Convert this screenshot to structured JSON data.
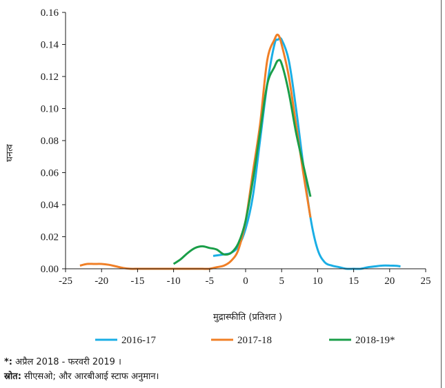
{
  "chart_data": {
    "type": "line",
    "title": "",
    "xlabel": "मुद्रास्फीति (प्रतिशत )",
    "ylabel": "घनत्व",
    "xlim": [
      -25,
      25
    ],
    "ylim": [
      0,
      0.16
    ],
    "xticks": [
      -25,
      -20,
      -15,
      -10,
      -5,
      0,
      5,
      10,
      15,
      20,
      25
    ],
    "yticks": [
      0.0,
      0.02,
      0.04,
      0.06,
      0.08,
      0.1,
      0.12,
      0.14,
      0.16
    ],
    "xtick_labels": [
      "-25",
      "-20",
      "-15",
      "-10",
      "-5",
      "0",
      "5",
      "10",
      "15",
      "20",
      "25"
    ],
    "ytick_labels": [
      "0.00",
      "0.02",
      "0.04",
      "0.06",
      "0.08",
      "0.10",
      "0.12",
      "0.14",
      "0.16"
    ],
    "grid": false,
    "legend_position": "bottom",
    "series": [
      {
        "name": "2016-17",
        "color": "#1aaee5",
        "x": [
          -4.5,
          -3,
          -2,
          -1,
          0,
          1,
          2,
          3,
          4,
          4.5,
          5,
          6,
          7,
          8,
          9,
          10,
          11,
          12,
          13,
          14,
          15,
          16,
          17,
          18,
          19,
          20,
          21,
          21.5
        ],
        "y": [
          0.008,
          0.009,
          0.01,
          0.014,
          0.025,
          0.045,
          0.08,
          0.115,
          0.14,
          0.143,
          0.143,
          0.13,
          0.1,
          0.065,
          0.032,
          0.012,
          0.004,
          0.002,
          0.001,
          0.0,
          0.0,
          0.0,
          0.001,
          0.0015,
          0.002,
          0.002,
          0.0018,
          0.0015
        ]
      },
      {
        "name": "2017-18",
        "color": "#f07f26",
        "x": [
          -23,
          -22,
          -21,
          -20,
          -19,
          -18,
          -17,
          -16,
          -15,
          -14,
          -13,
          -12,
          -11,
          -10,
          -9,
          -8,
          -7,
          -6,
          -5,
          -4,
          -3,
          -2,
          -1,
          0,
          1,
          2,
          3,
          4,
          4.5,
          5,
          6,
          7,
          8,
          9
        ],
        "y": [
          0.002,
          0.003,
          0.003,
          0.003,
          0.0025,
          0.0015,
          0.0005,
          0,
          0,
          0,
          0,
          0,
          0,
          0,
          0,
          0,
          0,
          0,
          0,
          0.001,
          0.002,
          0.005,
          0.012,
          0.03,
          0.06,
          0.09,
          0.13,
          0.143,
          0.146,
          0.14,
          0.12,
          0.09,
          0.06,
          0.032
        ]
      },
      {
        "name": "2018-19*",
        "color": "#1a9e48",
        "x": [
          -10,
          -9,
          -8,
          -7,
          -6,
          -5,
          -4,
          -3,
          -2,
          -1,
          0,
          1,
          2,
          3,
          4,
          4.5,
          5,
          6,
          7,
          8,
          9
        ],
        "y": [
          0.003,
          0.006,
          0.01,
          0.013,
          0.014,
          0.013,
          0.012,
          0.009,
          0.01,
          0.016,
          0.03,
          0.055,
          0.085,
          0.115,
          0.126,
          0.13,
          0.128,
          0.11,
          0.085,
          0.065,
          0.045
        ]
      }
    ]
  },
  "notes": {
    "footnote_mark": "*:",
    "footnote_text": " अप्रैल 2018 - फरवरी 2019 ।",
    "source_label": "स्रोत:",
    "source_text": " सीएसओ; और आरबीआई स्टाफ अनुमान।"
  }
}
